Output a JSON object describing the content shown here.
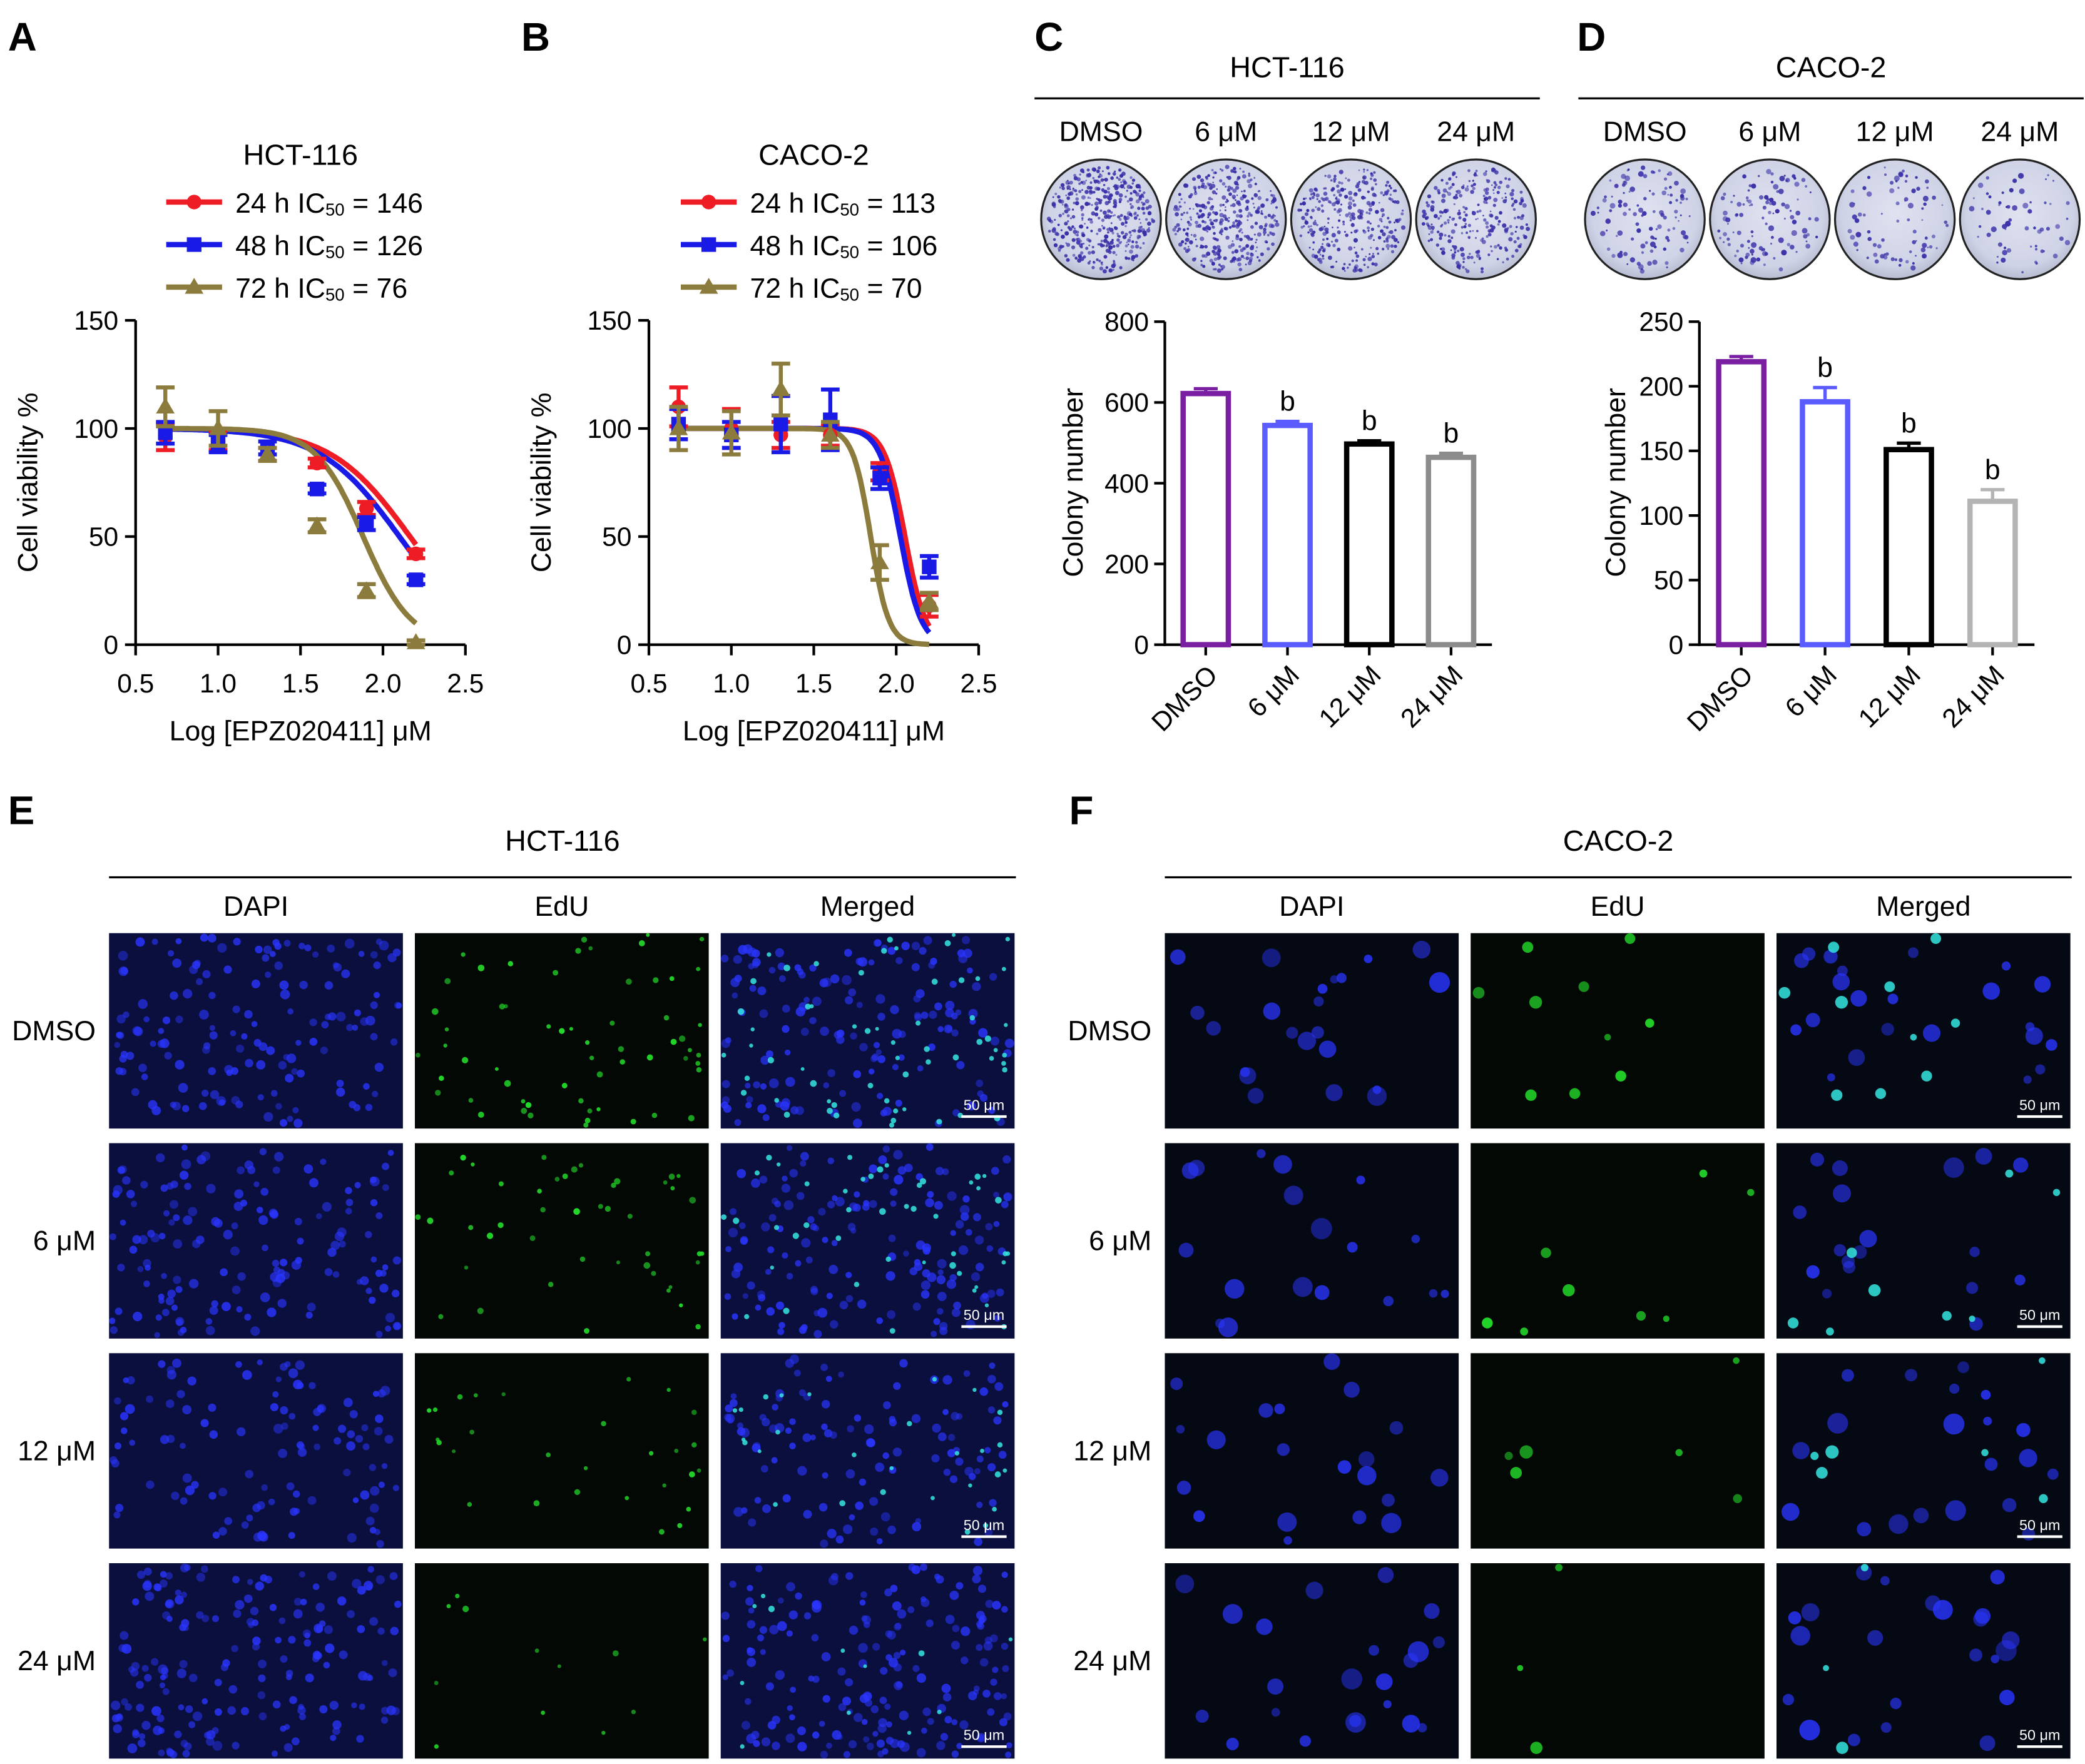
{
  "panels": {
    "A": {
      "label": "A"
    },
    "B": {
      "label": "B"
    },
    "C": {
      "label": "C",
      "cell_line": "HCT-116"
    },
    "D": {
      "label": "D",
      "cell_line": "CACO-2"
    },
    "E": {
      "label": "E",
      "cell_line": "HCT-116"
    },
    "F": {
      "label": "F",
      "cell_line": "CACO-2"
    }
  },
  "plate_conditions": [
    "DMSO",
    "6 μM",
    "12 μM",
    "24 μM"
  ],
  "micro": {
    "columns": [
      "DAPI",
      "EdU",
      "Merged"
    ],
    "rows": [
      "DMSO",
      "6 μM",
      "12 μM",
      "24 μM"
    ],
    "scale_bar": "50 μm"
  },
  "colors": {
    "red": "#ee1c25",
    "blue": "#1a1ae6",
    "olive": "#8b7b3c",
    "purple": "#7b1fa2",
    "light_blue": "#5a5cff",
    "black": "#000000",
    "gray": "#8c8c8c",
    "light_gray": "#b4b4b4"
  },
  "chart_data": [
    {
      "id": "A",
      "type": "line",
      "title": "HCT-116",
      "xlabel": "Log [EPZ020411] μM",
      "ylabel": "Cell viability %",
      "xlim": [
        0.5,
        2.5
      ],
      "ylim": [
        0,
        150
      ],
      "xticks": [
        "0.5",
        "1.0",
        "1.5",
        "2.0",
        "2.5"
      ],
      "yticks": [
        "0",
        "50",
        "100",
        "150"
      ],
      "legend": "top",
      "series": [
        {
          "name": "24 h IC50 = 146",
          "legend_pre": "24 h IC",
          "legend_sub": "50",
          "legend_post": " = 146",
          "color": "red",
          "marker": "circle",
          "ic50_log": 2.164,
          "hill": 1.8,
          "x": [
            0.68,
            1.0,
            1.3,
            1.6,
            1.9,
            2.2
          ],
          "y": [
            96,
            94,
            88,
            84,
            63,
            42
          ],
          "err": [
            6,
            4,
            3,
            2,
            3,
            2
          ]
        },
        {
          "name": "48 h IC50 = 126",
          "legend_pre": "48 h IC",
          "legend_sub": "50",
          "legend_post": " = 126",
          "color": "blue",
          "marker": "square",
          "ic50_log": 2.1,
          "hill": 1.8,
          "x": [
            0.68,
            1.0,
            1.3,
            1.6,
            1.9,
            2.2
          ],
          "y": [
            98,
            93,
            91,
            72,
            56,
            30
          ],
          "err": [
            5,
            4,
            3,
            2,
            3,
            2
          ]
        },
        {
          "name": "72 h IC50 = 76",
          "legend_pre": "72 h IC",
          "legend_sub": "50",
          "legend_post": " = 76",
          "color": "olive",
          "marker": "triangle",
          "ic50_log": 1.88,
          "hill": 3.0,
          "x": [
            0.68,
            1.0,
            1.3,
            1.6,
            1.9,
            2.2
          ],
          "y": [
            110,
            100,
            88,
            55,
            25,
            1
          ],
          "err": [
            9,
            8,
            3,
            3,
            3,
            1
          ]
        }
      ]
    },
    {
      "id": "B",
      "type": "line",
      "title": "CACO-2",
      "xlabel": "Log [EPZ020411] μM",
      "ylabel": "Cell viability %",
      "xlim": [
        0.5,
        2.5
      ],
      "ylim": [
        0,
        150
      ],
      "xticks": [
        "0.5",
        "1.0",
        "1.5",
        "2.0",
        "2.5"
      ],
      "yticks": [
        "0",
        "50",
        "100",
        "150"
      ],
      "legend": "top",
      "series": [
        {
          "name": "24 h IC50 = 113",
          "legend_pre": "24 h IC",
          "legend_sub": "50",
          "legend_post": " = 113",
          "color": "red",
          "marker": "circle",
          "ic50_log": 2.053,
          "hill": 7.0,
          "x": [
            0.68,
            1.0,
            1.3,
            1.6,
            1.9,
            2.2
          ],
          "y": [
            110,
            100,
            97,
            97,
            80,
            18
          ],
          "err": [
            9,
            9,
            6,
            5,
            4,
            5
          ]
        },
        {
          "name": "48 h IC50 = 106",
          "legend_pre": "48 h IC",
          "legend_sub": "50",
          "legend_post": " = 106",
          "color": "blue",
          "marker": "square",
          "ic50_log": 2.025,
          "hill": 7.0,
          "x": [
            0.68,
            1.0,
            1.3,
            1.6,
            1.9,
            2.2
          ],
          "y": [
            102,
            97,
            102,
            104,
            77,
            36
          ],
          "err": [
            7,
            6,
            13,
            14,
            5,
            5
          ]
        },
        {
          "name": "72 h IC50 = 70",
          "legend_pre": "72 h IC",
          "legend_sub": "50",
          "legend_post": " = 70",
          "color": "olive",
          "marker": "triangle",
          "ic50_log": 1.845,
          "hill": 8.0,
          "x": [
            0.68,
            1.0,
            1.3,
            1.6,
            1.9,
            2.2
          ],
          "y": [
            100,
            98,
            118,
            97,
            38,
            20
          ],
          "err": [
            10,
            10,
            12,
            6,
            8,
            4
          ]
        }
      ]
    },
    {
      "id": "C",
      "type": "bar",
      "ylabel": "Colony number",
      "ylim": [
        0,
        800
      ],
      "yticks": [
        "0",
        "200",
        "400",
        "600",
        "800"
      ],
      "categories": [
        "DMSO",
        "6 μM",
        "12 μM",
        "24 μM"
      ],
      "values": [
        622,
        543,
        497,
        464
      ],
      "errors": [
        12,
        10,
        8,
        10
      ],
      "significance": [
        "",
        "b",
        "b",
        "b"
      ],
      "bar_colors": [
        "purple",
        "light_blue",
        "black",
        "gray"
      ]
    },
    {
      "id": "D",
      "type": "bar",
      "ylabel": "Colony number",
      "ylim": [
        0,
        250
      ],
      "yticks": [
        "0",
        "50",
        "100",
        "150",
        "200",
        "250"
      ],
      "categories": [
        "DMSO",
        "6 μM",
        "12 μM",
        "24 μM"
      ],
      "values": [
        219,
        188,
        151,
        111
      ],
      "errors": [
        4,
        11,
        5,
        9
      ],
      "significance": [
        "",
        "b",
        "b",
        "b"
      ],
      "bar_colors": [
        "purple",
        "light_blue",
        "black",
        "light_gray"
      ]
    }
  ]
}
